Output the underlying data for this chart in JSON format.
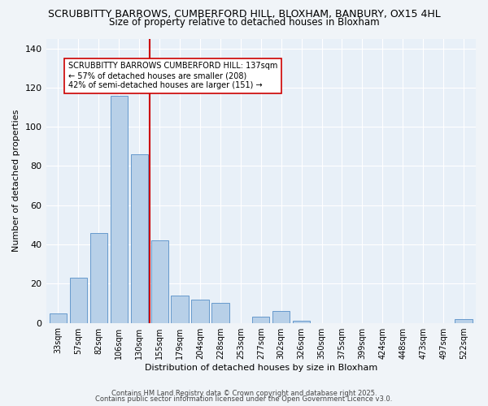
{
  "title_line1": "SCRUBBITTY BARROWS, CUMBERFORD HILL, BLOXHAM, BANBURY, OX15 4HL",
  "title_line2": "Size of property relative to detached houses in Bloxham",
  "xlabel": "Distribution of detached houses by size in Bloxham",
  "ylabel": "Number of detached properties",
  "categories": [
    "33sqm",
    "57sqm",
    "82sqm",
    "106sqm",
    "130sqm",
    "155sqm",
    "179sqm",
    "204sqm",
    "228sqm",
    "253sqm",
    "277sqm",
    "302sqm",
    "326sqm",
    "350sqm",
    "375sqm",
    "399sqm",
    "424sqm",
    "448sqm",
    "473sqm",
    "497sqm",
    "522sqm"
  ],
  "values": [
    5,
    23,
    46,
    116,
    86,
    42,
    14,
    12,
    10,
    0,
    3,
    6,
    1,
    0,
    0,
    0,
    0,
    0,
    0,
    0,
    2
  ],
  "bar_color": "#b8d0e8",
  "bar_edge_color": "#6699cc",
  "vline_color": "#cc0000",
  "vline_x": 4.5,
  "ylim": [
    0,
    145
  ],
  "yticks": [
    0,
    20,
    40,
    60,
    80,
    100,
    120,
    140
  ],
  "annotation_text_line1": "SCRUBBITTY BARROWS CUMBERFORD HILL: 137sqm",
  "annotation_text_line2": "← 57% of detached houses are smaller (208)",
  "annotation_text_line3": "42% of semi-detached houses are larger (151) →",
  "annotation_box_facecolor": "#ffffff",
  "annotation_box_edgecolor": "#cc0000",
  "background_color": "#f0f4f8",
  "plot_background": "#e8f0f8",
  "footer_line1": "Contains HM Land Registry data © Crown copyright and database right 2025.",
  "footer_line2": "Contains public sector information licensed under the Open Government Licence v3.0."
}
